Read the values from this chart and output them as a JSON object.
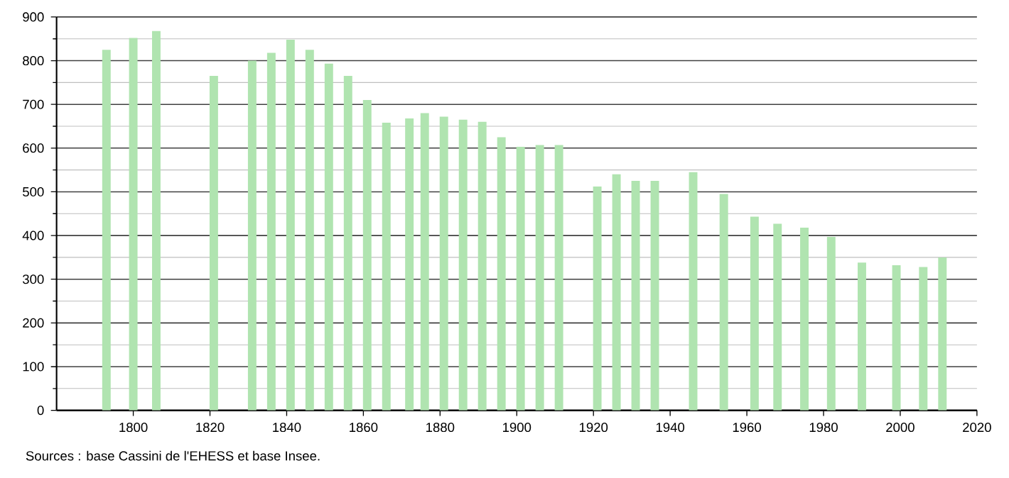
{
  "chart_data": {
    "type": "bar",
    "x": [
      1793,
      1800,
      1806,
      1821,
      1831,
      1836,
      1841,
      1846,
      1851,
      1856,
      1861,
      1866,
      1872,
      1876,
      1881,
      1886,
      1891,
      1896,
      1901,
      1906,
      1911,
      1921,
      1926,
      1931,
      1936,
      1946,
      1954,
      1962,
      1968,
      1975,
      1982,
      1990,
      1999,
      2006,
      2011
    ],
    "values": [
      825,
      852,
      868,
      765,
      800,
      818,
      848,
      825,
      793,
      765,
      710,
      658,
      668,
      680,
      672,
      665,
      660,
      625,
      603,
      607,
      607,
      512,
      540,
      525,
      525,
      545,
      495,
      443,
      427,
      418,
      397,
      338,
      332,
      328,
      350
    ],
    "color": "#b0e4b0",
    "xlim": [
      1780,
      2020
    ],
    "xticks": [
      1800,
      1820,
      1840,
      1860,
      1880,
      1900,
      1920,
      1940,
      1960,
      1980,
      2000,
      2020
    ],
    "ylim": [
      0,
      900
    ],
    "yticks": [
      0,
      100,
      200,
      300,
      400,
      500,
      600,
      700,
      800,
      900
    ],
    "grid": "y",
    "annotations": [
      "Sources : base Cassini de l'EHESS et base Insee."
    ]
  }
}
